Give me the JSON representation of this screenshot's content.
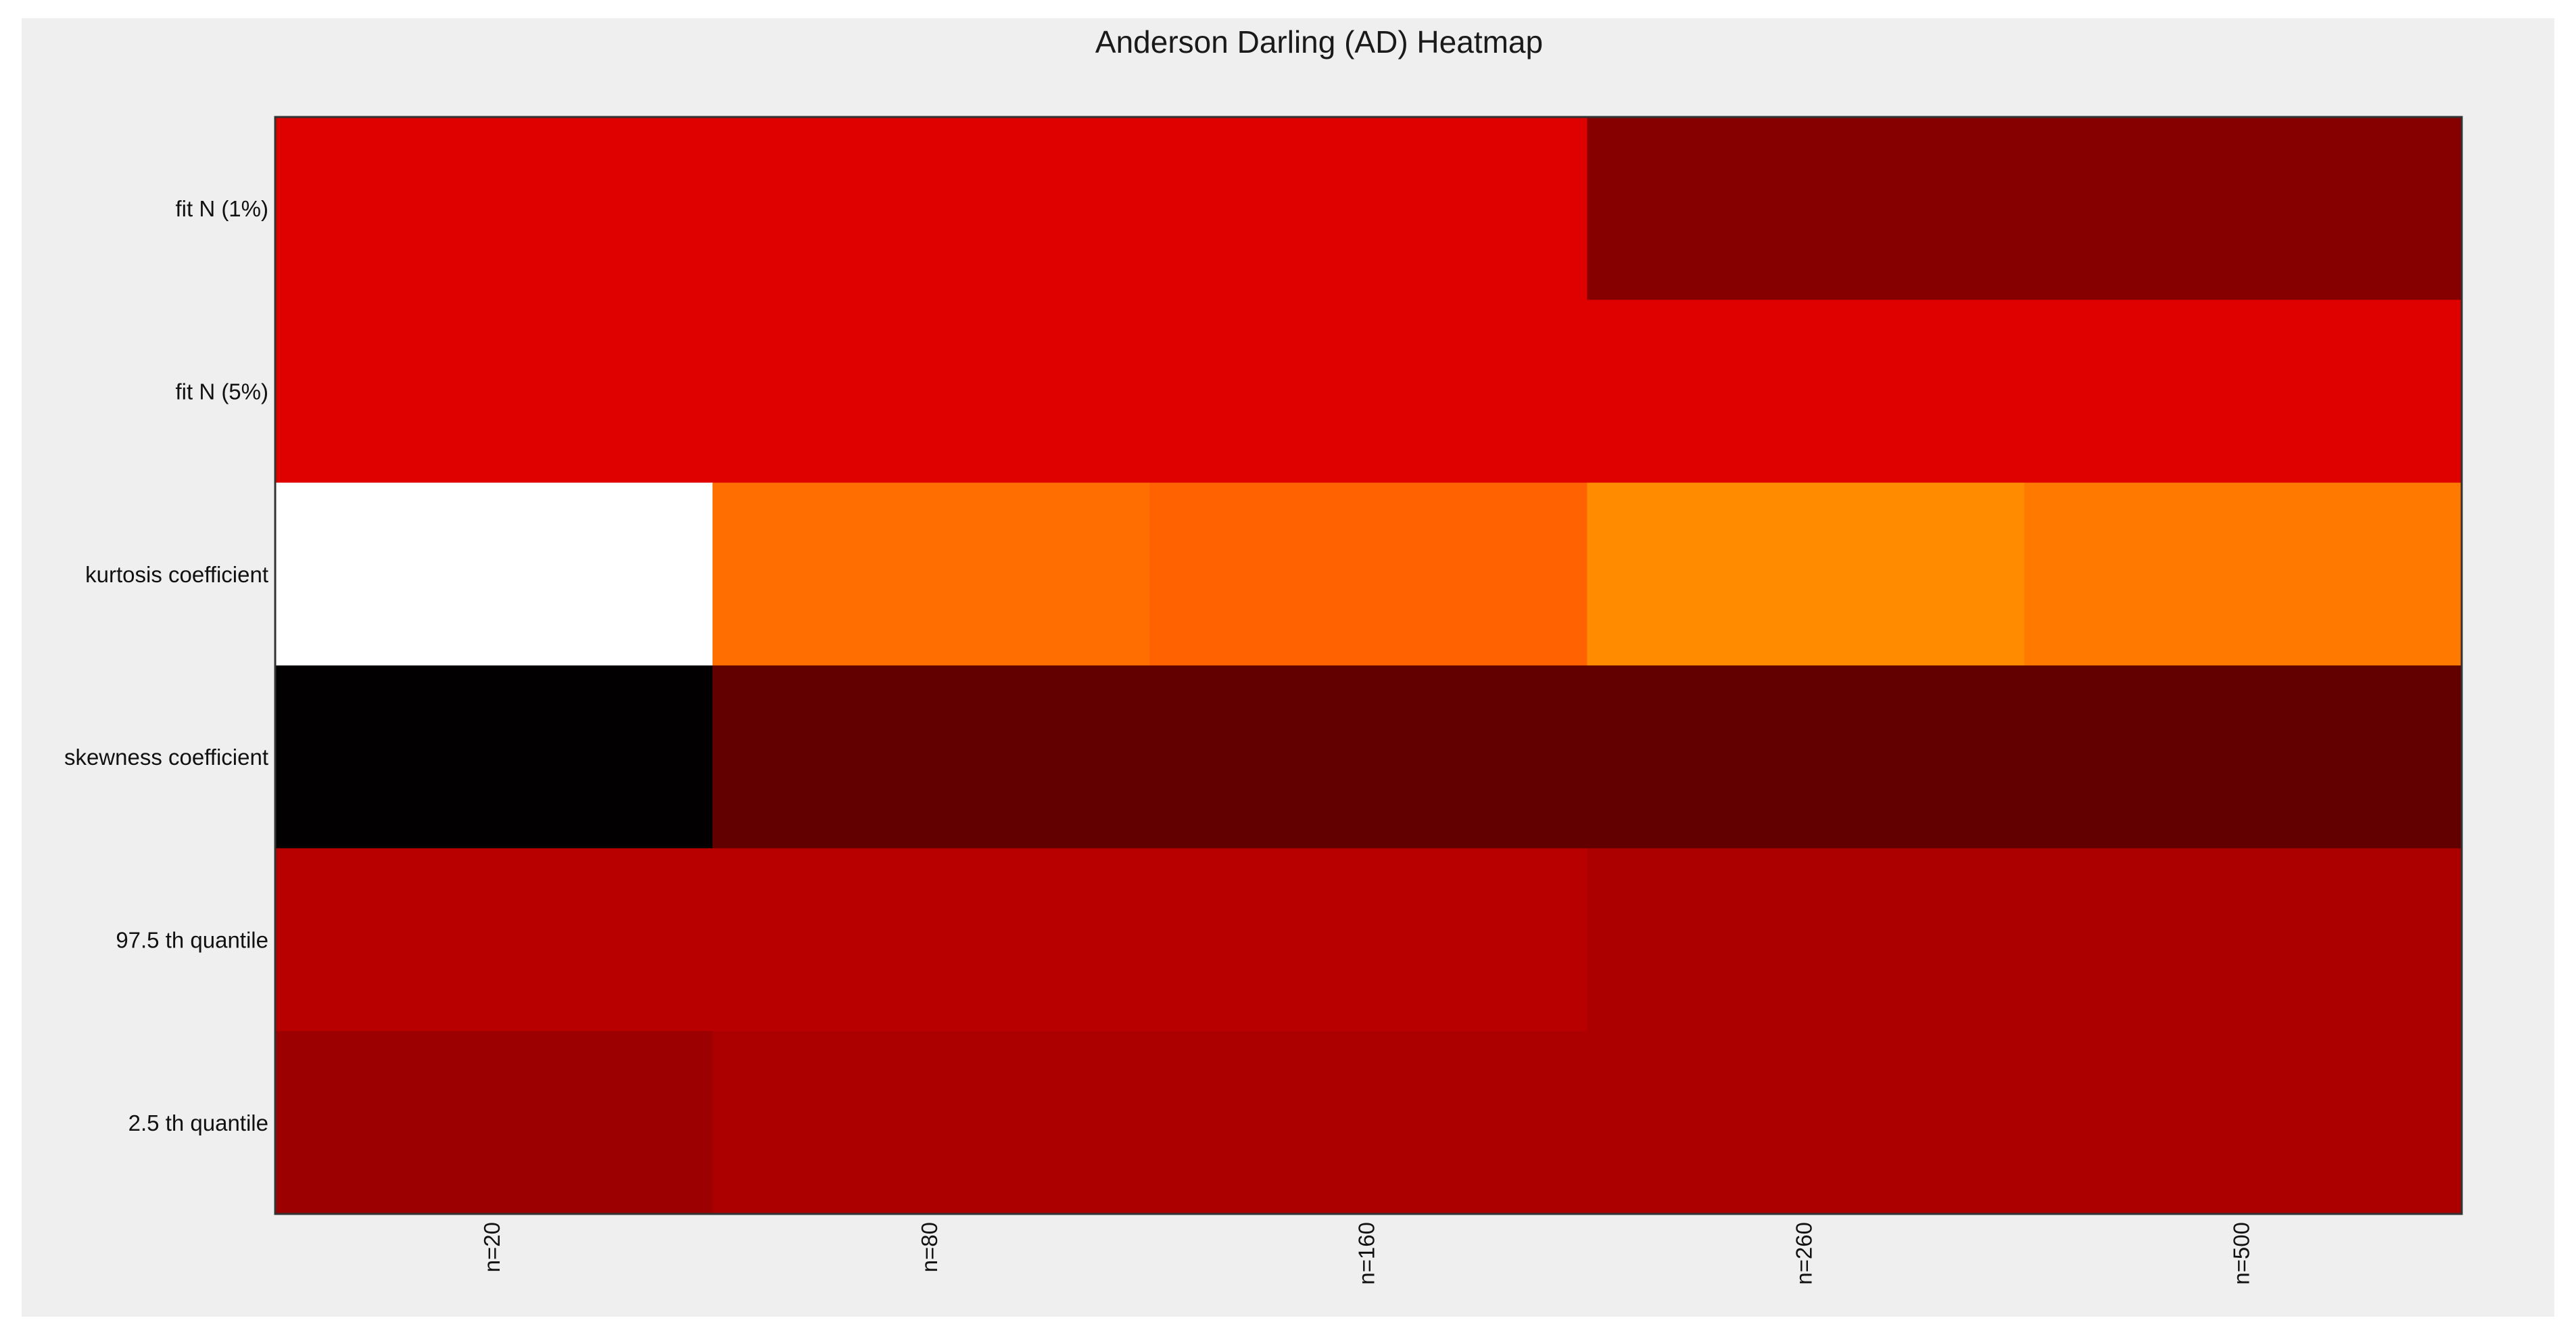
{
  "chart_data": {
    "type": "heatmap",
    "title": "Anderson Darling (AD) Heatmap",
    "xlabel": "",
    "ylabel": "",
    "x_categories": [
      "n=20",
      "n=80",
      "n=160",
      "n=260",
      "n=500"
    ],
    "y_categories": [
      "fit N (1%)",
      "fit N (5%)",
      "kurtosis coefficient",
      "skewness coefficient",
      "97.5 th quantile",
      "2.5 th quantile"
    ],
    "colormap": "hot",
    "values": [
      [
        0.55,
        0.55,
        0.55,
        0.35,
        0.35
      ],
      [
        0.55,
        0.55,
        0.55,
        0.55,
        0.55
      ],
      [
        1.0,
        0.74,
        0.71,
        0.79,
        0.75
      ],
      [
        0.01,
        0.26,
        0.26,
        0.26,
        0.26
      ],
      [
        0.47,
        0.47,
        0.47,
        0.44,
        0.44
      ],
      [
        0.4,
        0.44,
        0.44,
        0.44,
        0.44
      ]
    ],
    "cell_colors": [
      [
        "#df0000",
        "#df0000",
        "#df0000",
        "#870000",
        "#870000"
      ],
      [
        "#df0000",
        "#df0000",
        "#df0000",
        "#df0000",
        "#df0000"
      ],
      [
        "#ffffff",
        "#ff6e00",
        "#ff6200",
        "#ff8c00",
        "#ff7800"
      ],
      [
        "#020000",
        "#620000",
        "#620000",
        "#620000",
        "#620000"
      ],
      [
        "#b90000",
        "#b90000",
        "#b90000",
        "#ac0000",
        "#ac0000"
      ],
      [
        "#9c0000",
        "#ac0000",
        "#ac0000",
        "#ac0000",
        "#ac0000"
      ]
    ],
    "grid": false,
    "legend": "none"
  }
}
